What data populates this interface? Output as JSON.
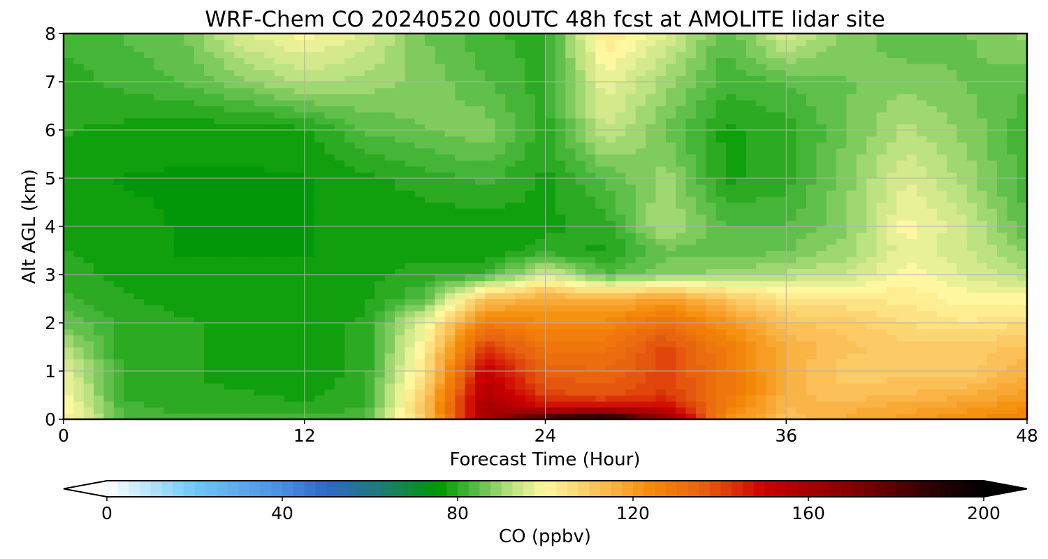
{
  "chart_data": {
    "type": "contour",
    "title": "WRF-Chem CO  20240520 00UTC 48h fcst at AMOLITE lidar site",
    "xlabel": "Forecast Time (Hour)",
    "ylabel": "Alt AGL (km)",
    "xlim": [
      0,
      48
    ],
    "ylim": [
      0,
      8
    ],
    "xticks": [
      0,
      12,
      24,
      36,
      48
    ],
    "yticks": [
      0,
      1,
      2,
      3,
      4,
      5,
      6,
      7,
      8
    ],
    "grid": true,
    "x": [
      0,
      3,
      6,
      9,
      12,
      15,
      18,
      21,
      24,
      27,
      30,
      33,
      36,
      39,
      42,
      45,
      48
    ],
    "y": [
      0,
      0.25,
      0.5,
      1,
      1.5,
      2,
      2.5,
      3,
      3.5,
      4,
      5,
      6,
      7,
      8
    ],
    "values": [
      [
        104,
        84,
        82,
        82,
        82,
        83,
        110,
        158,
        190,
        200,
        168,
        122,
        112,
        116,
        120,
        124,
        126
      ],
      [
        102,
        82,
        80,
        80,
        80,
        81,
        112,
        162,
        150,
        150,
        150,
        128,
        114,
        116,
        118,
        120,
        124
      ],
      [
        100,
        81,
        79,
        79,
        78,
        80,
        110,
        158,
        140,
        138,
        142,
        130,
        115,
        112,
        114,
        116,
        120
      ],
      [
        98,
        80,
        79,
        78,
        78,
        79,
        105,
        152,
        135,
        134,
        140,
        130,
        115,
        110,
        110,
        110,
        116
      ],
      [
        92,
        80,
        79,
        78,
        78,
        79,
        102,
        142,
        130,
        130,
        140,
        128,
        116,
        112,
        110,
        110,
        112
      ],
      [
        86,
        80,
        79,
        78,
        78,
        79,
        98,
        128,
        124,
        125,
        132,
        122,
        112,
        110,
        106,
        104,
        106
      ],
      [
        82,
        79,
        78,
        77,
        77,
        78,
        84,
        112,
        118,
        115,
        120,
        112,
        104,
        104,
        103,
        100,
        100
      ],
      [
        80,
        78,
        77,
        77,
        77,
        78,
        80,
        82,
        96,
        84,
        88,
        90,
        92,
        94,
        100,
        96,
        92
      ],
      [
        79,
        77,
        76,
        76,
        76,
        77,
        78,
        76,
        80,
        78,
        86,
        84,
        86,
        90,
        98,
        94,
        88
      ],
      [
        78,
        77,
        76,
        76,
        76,
        77,
        77,
        77,
        78,
        80,
        92,
        84,
        84,
        88,
        100,
        94,
        84
      ],
      [
        78,
        76,
        76,
        76,
        76,
        78,
        80,
        82,
        78,
        84,
        90,
        78,
        80,
        88,
        96,
        90,
        82
      ],
      [
        79,
        78,
        77,
        77,
        78,
        84,
        86,
        88,
        80,
        94,
        86,
        78,
        80,
        86,
        92,
        88,
        82
      ],
      [
        80,
        82,
        84,
        88,
        92,
        90,
        88,
        84,
        80,
        98,
        90,
        82,
        84,
        86,
        88,
        86,
        84
      ],
      [
        82,
        84,
        86,
        96,
        100,
        96,
        86,
        82,
        80,
        104,
        96,
        84,
        96,
        88,
        84,
        86,
        90
      ]
    ],
    "colorbar": {
      "label": "CO  (ppbv)",
      "min": 0,
      "max": 200,
      "ticks": [
        0,
        40,
        80,
        120,
        160,
        200
      ],
      "extend": "both",
      "stops": [
        {
          "v": 0,
          "c": "#ffffff"
        },
        {
          "v": 20,
          "c": "#6ec8f5"
        },
        {
          "v": 40,
          "c": "#4a8ee0"
        },
        {
          "v": 50,
          "c": "#2f68c7"
        },
        {
          "v": 62,
          "c": "#1e7a7a"
        },
        {
          "v": 76,
          "c": "#009900"
        },
        {
          "v": 84,
          "c": "#55bb44"
        },
        {
          "v": 92,
          "c": "#b8e080"
        },
        {
          "v": 100,
          "c": "#fff8a0"
        },
        {
          "v": 112,
          "c": "#fbc25a"
        },
        {
          "v": 124,
          "c": "#f58b08"
        },
        {
          "v": 136,
          "c": "#e86010"
        },
        {
          "v": 150,
          "c": "#cc0000"
        },
        {
          "v": 172,
          "c": "#7a0000"
        },
        {
          "v": 190,
          "c": "#250000"
        },
        {
          "v": 200,
          "c": "#000000"
        }
      ]
    }
  }
}
